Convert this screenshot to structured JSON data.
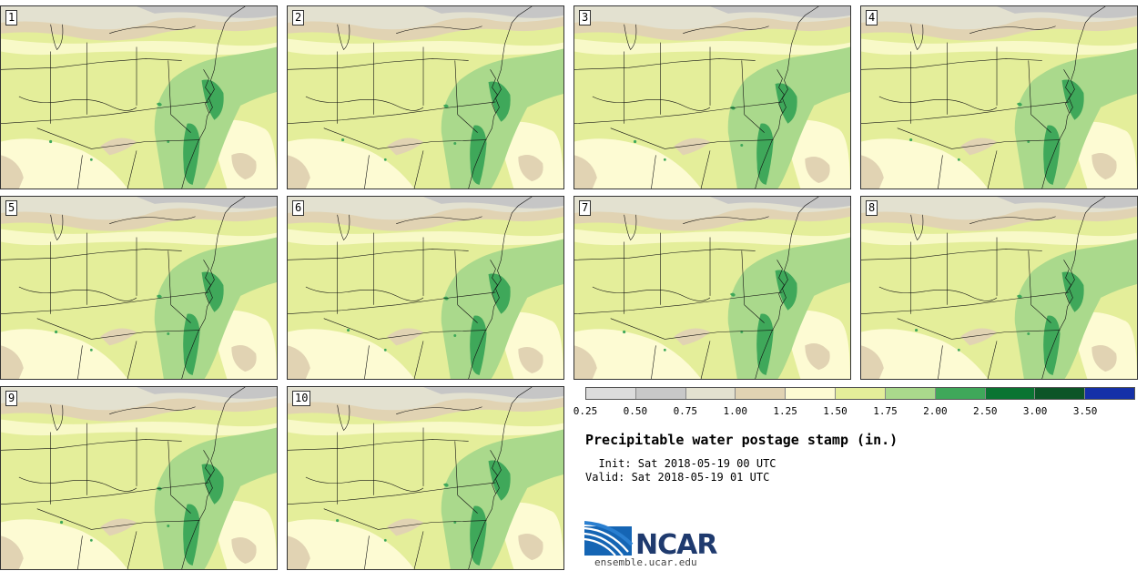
{
  "members": [
    {
      "label": "1"
    },
    {
      "label": "2"
    },
    {
      "label": "3"
    },
    {
      "label": "4"
    },
    {
      "label": "5"
    },
    {
      "label": "6"
    },
    {
      "label": "7"
    },
    {
      "label": "8"
    },
    {
      "label": "9"
    },
    {
      "label": "10"
    }
  ],
  "colorbar": {
    "ticks": [
      "0.25",
      "0.50",
      "0.75",
      "1.00",
      "1.25",
      "1.50",
      "1.75",
      "2.00",
      "2.50",
      "3.00",
      "3.50"
    ],
    "colors": [
      "#dcdcdc",
      "#c8c8c8",
      "#e3e1d0",
      "#e1d3b3",
      "#fdfbd3",
      "#e4ee9a",
      "#aad98c",
      "#3fa85a",
      "#0a7432",
      "#0c5527",
      "#1530a8"
    ]
  },
  "legend": {
    "title": "Precipitable water postage stamp (in.)",
    "init": "  Init: Sat 2018-05-19 00 UTC",
    "valid": "Valid: Sat 2018-05-19 01 UTC"
  },
  "logo": {
    "text": "NCAR",
    "url": "ensemble.ucar.edu"
  }
}
